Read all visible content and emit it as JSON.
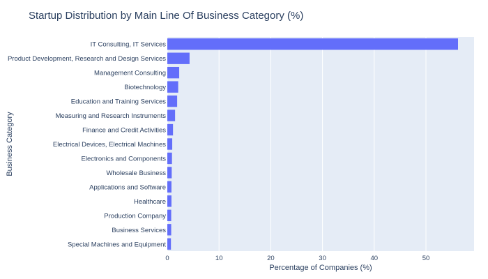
{
  "chart_data": {
    "type": "bar",
    "orientation": "horizontal",
    "title": "Startup Distribution by Main Line Of Business Category (%)",
    "xlabel": "Percentage of Companies (%)",
    "ylabel": "Business Category",
    "xlim": [
      0,
      59.3
    ],
    "xticks": [
      "0",
      "10",
      "20",
      "30",
      "40",
      "50"
    ],
    "grid": true,
    "colors": {
      "bar": "#636efa",
      "plot_bg": "#e5ecf6",
      "grid": "#ffffff",
      "text": "#2a3f5f"
    },
    "categories": [
      "IT Consulting, IT Services",
      "Product Development, Research and Design Services",
      "Management Consulting",
      "Biotechnology",
      "Education and Training Services",
      "Measuring and Research Instruments",
      "Finance and Credit Activities",
      "Electrical Devices, Electrical Machines",
      "Electronics and Components",
      "Wholesale Business",
      "Applications and Software",
      "Healthcare",
      "Production Company",
      "Business Services",
      "Special Machines and Equipment"
    ],
    "values": [
      56.2,
      4.3,
      2.3,
      2.1,
      1.9,
      1.5,
      1.1,
      0.95,
      0.9,
      0.85,
      0.8,
      0.8,
      0.75,
      0.75,
      0.7
    ]
  }
}
